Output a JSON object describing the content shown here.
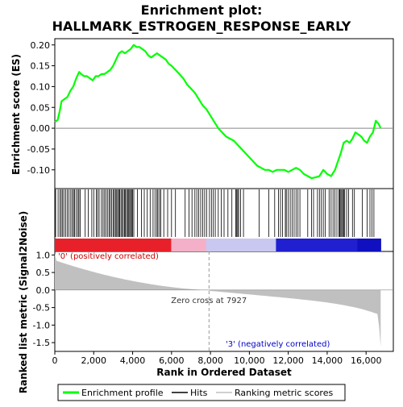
{
  "chart_data": {
    "type": "line",
    "title_line1": "Enrichment plot:",
    "title_line2": "HALLMARK_ESTROGEN_RESPONSE_EARLY",
    "xlabel": "Rank in Ordered Dataset",
    "ylabel_top": "Enrichment score (ES)",
    "ylabel_bottom": "Ranked list metric (Signal2Noise)",
    "xlim": [
      0,
      17400
    ],
    "x_ticks": [
      0,
      2000,
      4000,
      6000,
      8000,
      10000,
      12000,
      14000,
      16000
    ],
    "x_tick_labels": [
      "0",
      "2,000",
      "4,000",
      "6,000",
      "8,000",
      "10,000",
      "12,000",
      "14,000",
      "16,000"
    ],
    "es_ylim": [
      -0.145,
      0.215
    ],
    "es_ticks": [
      0.2,
      0.15,
      0.1,
      0.05,
      0.0,
      -0.05,
      -0.1
    ],
    "es_tick_labels": [
      "0.20",
      "0.15",
      "0.10",
      "0.05",
      "0.00",
      "-0.05",
      "-0.10"
    ],
    "metric_ylim": [
      -1.75,
      1.1
    ],
    "metric_ticks": [
      1.0,
      0.5,
      0.0,
      -0.5,
      -1.0,
      -1.5
    ],
    "metric_tick_labels": [
      "1.0",
      "0.5",
      "0.0",
      "-0.5",
      "-1.0",
      "-1.5"
    ],
    "zero_cross_rank": 7927,
    "zero_cross_label": "Zero cross at 7927",
    "positive_label": "'0' (positively correlated)",
    "negative_label": "'3' (negatively correlated)",
    "total_genes": 16750,
    "enrichment_profile": {
      "x": [
        0,
        150,
        250,
        350,
        500,
        650,
        800,
        950,
        1100,
        1250,
        1350,
        1500,
        1650,
        1800,
        1950,
        2100,
        2250,
        2400,
        2550,
        2700,
        2850,
        3000,
        3150,
        3300,
        3450,
        3600,
        3750,
        3900,
        4050,
        4200,
        4350,
        4500,
        4650,
        4800,
        4950,
        5100,
        5250,
        5400,
        5550,
        5700,
        5850,
        6000,
        6200,
        6400,
        6600,
        6800,
        7000,
        7200,
        7400,
        7600,
        7800,
        8000,
        8200,
        8400,
        8600,
        8800,
        9000,
        9200,
        9400,
        9600,
        9800,
        10000,
        10200,
        10400,
        10600,
        10800,
        11000,
        11200,
        11400,
        11600,
        11800,
        12000,
        12200,
        12400,
        12600,
        12800,
        13000,
        13200,
        13400,
        13600,
        13800,
        14000,
        14200,
        14400,
        14550,
        14700,
        14850,
        15000,
        15150,
        15300,
        15450,
        15600,
        15750,
        15900,
        16050,
        16200,
        16350,
        16500,
        16650,
        16750
      ],
      "y": [
        0.015,
        0.02,
        0.04,
        0.065,
        0.07,
        0.075,
        0.09,
        0.1,
        0.12,
        0.135,
        0.13,
        0.125,
        0.125,
        0.12,
        0.115,
        0.125,
        0.125,
        0.13,
        0.13,
        0.135,
        0.14,
        0.15,
        0.165,
        0.18,
        0.185,
        0.18,
        0.185,
        0.19,
        0.2,
        0.195,
        0.195,
        0.19,
        0.185,
        0.175,
        0.17,
        0.175,
        0.18,
        0.175,
        0.17,
        0.165,
        0.155,
        0.15,
        0.14,
        0.13,
        0.12,
        0.105,
        0.095,
        0.085,
        0.07,
        0.055,
        0.045,
        0.03,
        0.015,
        0.0,
        -0.01,
        -0.02,
        -0.025,
        -0.03,
        -0.04,
        -0.05,
        -0.06,
        -0.07,
        -0.08,
        -0.09,
        -0.095,
        -0.1,
        -0.1,
        -0.105,
        -0.1,
        -0.1,
        -0.1,
        -0.105,
        -0.1,
        -0.095,
        -0.1,
        -0.11,
        -0.115,
        -0.12,
        -0.118,
        -0.115,
        -0.1,
        -0.11,
        -0.115,
        -0.1,
        -0.08,
        -0.06,
        -0.035,
        -0.03,
        -0.035,
        -0.025,
        -0.01,
        -0.015,
        -0.02,
        -0.03,
        -0.035,
        -0.02,
        -0.01,
        0.018,
        0.01,
        0.0
      ]
    },
    "hits": [
      40,
      170,
      260,
      330,
      400,
      470,
      560,
      640,
      730,
      820,
      900,
      960,
      1020,
      1100,
      1190,
      1240,
      1300,
      1560,
      1720,
      1900,
      2000,
      2130,
      2200,
      2280,
      2400,
      2480,
      2560,
      2640,
      2720,
      2800,
      2860,
      2930,
      3000,
      3060,
      3120,
      3180,
      3230,
      3290,
      3340,
      3400,
      3460,
      3520,
      3580,
      3630,
      3690,
      3740,
      3800,
      3850,
      3900,
      3950,
      4000,
      4060,
      4250,
      4450,
      4600,
      4750,
      4900,
      5050,
      5150,
      5250,
      5300,
      5380,
      5450,
      5600,
      5800,
      6000,
      6200,
      6700,
      6900,
      7050,
      7200,
      7300,
      7400,
      7500,
      7600,
      7700,
      7800,
      7950,
      8050,
      8150,
      8250,
      8400,
      8550,
      8700,
      8900,
      9100,
      9300,
      9350,
      9400,
      9450,
      9550,
      9700,
      10500,
      11000,
      11300,
      11500,
      11600,
      11700,
      11850,
      11900,
      12000,
      12100,
      12200,
      12300,
      12400,
      12500,
      12600,
      13000,
      13200,
      13300,
      13500,
      13600,
      13700,
      13800,
      13900,
      14100,
      14200,
      14300,
      14400,
      14500,
      14600,
      14650,
      14700,
      14750,
      14800,
      14850,
      14900,
      15000,
      15100,
      15300,
      15400,
      15800,
      16050,
      16200,
      16300,
      16400
    ]
  },
  "legend": {
    "items": [
      {
        "label": "Enrichment profile",
        "color": "#00ff00"
      },
      {
        "label": "Hits",
        "color": "#000000"
      },
      {
        "label": "Ranking metric scores",
        "color": "#c0c0c0"
      }
    ]
  },
  "colors": {
    "profile": "#00ff00",
    "metric_fill": "#c0c0c0",
    "bar_red": "#e8202a",
    "bar_pink": "#f4b0c8",
    "bar_lavender": "#c8c8f0",
    "bar_blue": "#2020d0",
    "bar_navy": "#1010c0"
  }
}
